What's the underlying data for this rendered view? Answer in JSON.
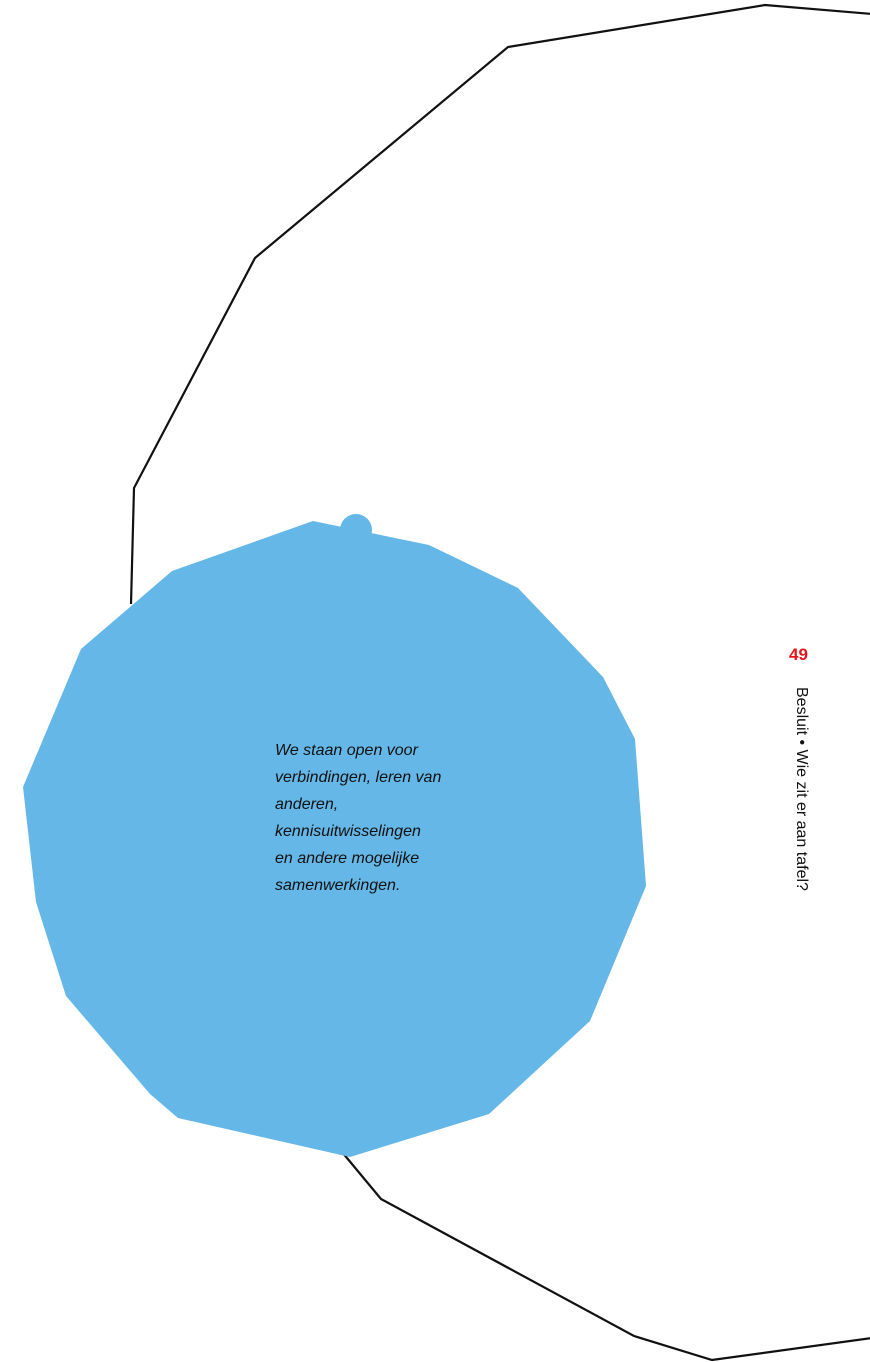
{
  "colors": {
    "blob_fill": "#64b7e6",
    "outline_stroke": "#111111",
    "page_number": "#e3151b",
    "text": "#111111",
    "background": "#ffffff"
  },
  "quote": {
    "lines": [
      "We staan open voor",
      "verbindingen, leren van",
      "anderen,",
      "kennisuitwisselingen",
      "en andere mogelijke",
      "samenwerkingen."
    ]
  },
  "footer": {
    "page_number": "49",
    "running_head": "Besluit • Wie zit er aan tafel?"
  }
}
